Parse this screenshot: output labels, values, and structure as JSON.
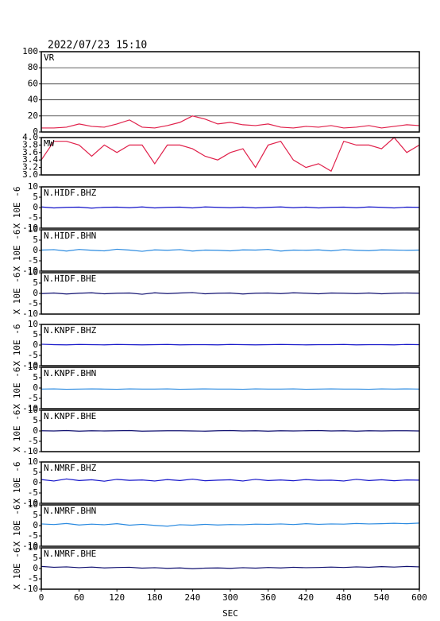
{
  "chart_data": [
    {
      "type": "line",
      "title": "2022/07/23 15:10",
      "xlim": [
        0,
        600
      ],
      "ylim": [
        0,
        100
      ],
      "yticks": [
        0,
        20,
        40,
        60,
        80,
        100
      ],
      "grid": true,
      "x": [
        0,
        20,
        40,
        60,
        80,
        100,
        120,
        140,
        160,
        180,
        200,
        220,
        240,
        260,
        280,
        300,
        320,
        340,
        360,
        380,
        400,
        420,
        440,
        460,
        480,
        500,
        520,
        540,
        560,
        580,
        600
      ],
      "series": [
        {
          "name": "VR",
          "color": "#e0204a",
          "values": [
            5,
            5,
            6,
            10,
            7,
            6,
            10,
            15,
            6,
            5,
            8,
            12,
            20,
            16,
            10,
            12,
            9,
            8,
            10,
            6,
            5,
            7,
            6,
            8,
            5,
            6,
            8,
            5,
            7,
            9,
            8
          ]
        }
      ]
    },
    {
      "type": "line",
      "xlim": [
        0,
        600
      ],
      "ylim": [
        3,
        4
      ],
      "yticks": [
        {
          "value": 3.0,
          "label": "3.0"
        },
        3.2,
        3.4,
        3.6,
        3.8,
        {
          "value": 4.0,
          "label": "4.0"
        }
      ],
      "x": [
        0,
        20,
        40,
        60,
        80,
        100,
        120,
        140,
        160,
        180,
        200,
        220,
        240,
        260,
        280,
        300,
        320,
        340,
        360,
        380,
        400,
        420,
        440,
        460,
        480,
        500,
        520,
        540,
        560,
        580,
        600
      ],
      "series": [
        {
          "name": "MW",
          "color": "#e0204a",
          "values": [
            3.4,
            3.9,
            3.9,
            3.8,
            3.5,
            3.8,
            3.6,
            3.8,
            3.8,
            3.3,
            3.8,
            3.8,
            3.7,
            3.5,
            3.4,
            3.6,
            3.7,
            3.2,
            3.8,
            3.9,
            3.4,
            3.2,
            3.3,
            3.1,
            3.9,
            3.8,
            3.8,
            3.7,
            4.0,
            3.6,
            3.8
          ]
        }
      ]
    },
    {
      "type": "line",
      "ylabel": "X 10E -6",
      "xlim": [
        0,
        600
      ],
      "ylim": [
        -10,
        10
      ],
      "yticks": [
        -10,
        -5,
        0,
        5,
        10
      ],
      "x": [
        0,
        20,
        40,
        60,
        80,
        100,
        120,
        140,
        160,
        180,
        200,
        220,
        240,
        260,
        280,
        300,
        320,
        340,
        360,
        380,
        400,
        420,
        440,
        460,
        480,
        500,
        520,
        540,
        560,
        580,
        600
      ],
      "series": [
        {
          "name": "N.HIDF.BHZ",
          "color": "#1010c8",
          "values": [
            0.3,
            -0.2,
            0.1,
            0.2,
            -0.3,
            0.1,
            0.2,
            -0.1,
            0.3,
            -0.2,
            0.1,
            0.2,
            -0.2,
            0.3,
            0.1,
            -0.1,
            0.2,
            -0.2,
            0.1,
            0.3,
            -0.1,
            0.2,
            -0.2,
            0.1,
            0.2,
            -0.1,
            0.3,
            0.1,
            -0.2,
            0.2,
            0.1
          ]
        }
      ]
    },
    {
      "type": "line",
      "ylabel": "X 10E -6",
      "xlim": [
        0,
        600
      ],
      "ylim": [
        -10,
        10
      ],
      "yticks": [
        -10,
        -5,
        0,
        5,
        10
      ],
      "x": [
        0,
        20,
        40,
        60,
        80,
        100,
        120,
        140,
        160,
        180,
        200,
        220,
        240,
        260,
        280,
        300,
        320,
        340,
        360,
        380,
        400,
        420,
        440,
        460,
        480,
        500,
        520,
        540,
        560,
        580,
        600
      ],
      "series": [
        {
          "name": "N.HIDF.BHN",
          "color": "#2a8ae0",
          "values": [
            0.2,
            0.4,
            -0.3,
            0.5,
            0.1,
            -0.2,
            0.6,
            0.2,
            -0.4,
            0.3,
            0.1,
            0.4,
            -0.3,
            0.2,
            0.1,
            -0.2,
            0.3,
            0.2,
            0.5,
            -0.3,
            0.2,
            0.1,
            0.3,
            -0.2,
            0.4,
            0.1,
            -0.1,
            0.3,
            0.2,
            0.1,
            0.2
          ]
        }
      ]
    },
    {
      "type": "line",
      "ylabel": "X 10E -6",
      "xlim": [
        0,
        600
      ],
      "ylim": [
        -10,
        10
      ],
      "yticks": [
        -10,
        -5,
        0,
        5,
        10
      ],
      "x": [
        0,
        20,
        40,
        60,
        80,
        100,
        120,
        140,
        160,
        180,
        200,
        220,
        240,
        260,
        280,
        300,
        320,
        340,
        360,
        380,
        400,
        420,
        440,
        460,
        480,
        500,
        520,
        540,
        560,
        580,
        600
      ],
      "series": [
        {
          "name": "N.HIDF.BHE",
          "color": "#101070",
          "values": [
            -0.1,
            0.2,
            -0.3,
            0.1,
            0.3,
            -0.2,
            0.1,
            0.2,
            -0.4,
            0.3,
            -0.1,
            0.2,
            0.4,
            -0.2,
            0.1,
            0.2,
            -0.3,
            0.1,
            0.2,
            -0.1,
            0.3,
            0.1,
            -0.2,
            0.2,
            0.1,
            -0.1,
            0.2,
            -0.2,
            0.1,
            0.2,
            0.1
          ]
        }
      ]
    },
    {
      "type": "line",
      "ylabel": "X 10E -6",
      "xlim": [
        0,
        600
      ],
      "ylim": [
        -10,
        10
      ],
      "yticks": [
        -10,
        -5,
        0,
        5,
        10
      ],
      "x": [
        0,
        20,
        40,
        60,
        80,
        100,
        120,
        140,
        160,
        180,
        200,
        220,
        240,
        260,
        280,
        300,
        320,
        340,
        360,
        380,
        400,
        420,
        440,
        460,
        480,
        500,
        520,
        540,
        560,
        580,
        600
      ],
      "series": [
        {
          "name": "N.KNPF.BHZ",
          "color": "#1010c8",
          "values": [
            0.4,
            0.2,
            0.1,
            0.3,
            0.2,
            0.1,
            0.3,
            0.2,
            0.1,
            0.2,
            0.3,
            0.1,
            0.2,
            0.2,
            0.1,
            0.3,
            0.2,
            0.1,
            0.2,
            0.3,
            0.2,
            0.1,
            0.2,
            0.2,
            0.3,
            0.1,
            0.2,
            0.2,
            0.1,
            0.3,
            0.2
          ]
        }
      ]
    },
    {
      "type": "line",
      "ylabel": "X 10E -6",
      "xlim": [
        0,
        600
      ],
      "ylim": [
        -10,
        10
      ],
      "yticks": [
        -10,
        -5,
        0,
        5,
        10
      ],
      "x": [
        0,
        20,
        40,
        60,
        80,
        100,
        120,
        140,
        160,
        180,
        200,
        220,
        240,
        260,
        280,
        300,
        320,
        340,
        360,
        380,
        400,
        420,
        440,
        460,
        480,
        500,
        520,
        540,
        560,
        580,
        600
      ],
      "series": [
        {
          "name": "N.KNPF.BHN",
          "color": "#2a8ae0",
          "values": [
            -0.5,
            -0.4,
            -0.6,
            -0.5,
            -0.4,
            -0.5,
            -0.6,
            -0.4,
            -0.5,
            -0.5,
            -0.4,
            -0.6,
            -0.5,
            -0.4,
            -0.5,
            -0.5,
            -0.6,
            -0.4,
            -0.5,
            -0.5,
            -0.4,
            -0.6,
            -0.5,
            -0.4,
            -0.5,
            -0.5,
            -0.6,
            -0.4,
            -0.5,
            -0.4,
            -0.5
          ]
        }
      ]
    },
    {
      "type": "line",
      "ylabel": "X 10E -6",
      "xlim": [
        0,
        600
      ],
      "ylim": [
        -10,
        10
      ],
      "yticks": [
        -10,
        -5,
        0,
        5,
        10
      ],
      "x": [
        0,
        20,
        40,
        60,
        80,
        100,
        120,
        140,
        160,
        180,
        200,
        220,
        240,
        260,
        280,
        300,
        320,
        340,
        360,
        380,
        400,
        420,
        440,
        460,
        480,
        500,
        520,
        540,
        560,
        580,
        600
      ],
      "series": [
        {
          "name": "N.KNPF.BHE",
          "color": "#101070",
          "values": [
            0.1,
            0.0,
            0.2,
            -0.1,
            0.1,
            0.0,
            0.1,
            0.2,
            -0.1,
            0.0,
            0.1,
            0.1,
            0.0,
            -0.1,
            0.1,
            0.2,
            0.0,
            0.1,
            -0.1,
            0.1,
            0.0,
            0.1,
            0.2,
            0.0,
            0.1,
            -0.1,
            0.1,
            0.0,
            0.1,
            0.1,
            0.0
          ]
        }
      ]
    },
    {
      "type": "line",
      "ylabel": "X 10E -6",
      "xlim": [
        0,
        600
      ],
      "ylim": [
        -10,
        10
      ],
      "yticks": [
        -10,
        -5,
        0,
        5,
        10
      ],
      "x": [
        0,
        20,
        40,
        60,
        80,
        100,
        120,
        140,
        160,
        180,
        200,
        220,
        240,
        260,
        280,
        300,
        320,
        340,
        360,
        380,
        400,
        420,
        440,
        460,
        480,
        500,
        520,
        540,
        560,
        580,
        600
      ],
      "series": [
        {
          "name": "N.NMRF.BHZ",
          "color": "#1010c8",
          "values": [
            1.5,
            0.8,
            1.8,
            1.0,
            1.4,
            0.7,
            1.6,
            1.1,
            1.3,
            0.8,
            1.5,
            1.0,
            1.7,
            0.9,
            1.2,
            1.4,
            0.8,
            1.6,
            1.0,
            1.3,
            0.9,
            1.5,
            1.1,
            1.2,
            0.8,
            1.6,
            1.0,
            1.4,
            0.9,
            1.3,
            1.2
          ]
        }
      ]
    },
    {
      "type": "line",
      "ylabel": "X 10E -6",
      "xlim": [
        0,
        600
      ],
      "ylim": [
        -10,
        10
      ],
      "yticks": [
        -10,
        -5,
        0,
        5,
        10
      ],
      "x": [
        0,
        20,
        40,
        60,
        80,
        100,
        120,
        140,
        160,
        180,
        200,
        220,
        240,
        260,
        280,
        300,
        320,
        340,
        360,
        380,
        400,
        420,
        440,
        460,
        480,
        500,
        520,
        540,
        560,
        580,
        600
      ],
      "series": [
        {
          "name": "N.NMRF.BHN",
          "color": "#2a8ae0",
          "values": [
            0.8,
            0.5,
            1.0,
            0.3,
            0.7,
            0.4,
            0.9,
            0.2,
            0.6,
            0.1,
            -0.3,
            0.4,
            0.2,
            0.6,
            0.3,
            0.5,
            0.4,
            0.7,
            0.6,
            0.8,
            0.5,
            0.9,
            0.6,
            0.8,
            0.7,
            1.0,
            0.8,
            0.9,
            1.1,
            0.9,
            1.2
          ]
        }
      ]
    },
    {
      "type": "line",
      "ylabel": "X 10E -6",
      "xlabel": "SEC",
      "xlim": [
        0,
        600
      ],
      "xticks": [
        0,
        60,
        120,
        180,
        240,
        300,
        360,
        420,
        480,
        540,
        600
      ],
      "ylim": [
        -10,
        10
      ],
      "yticks": [
        -10,
        -5,
        0,
        5,
        10
      ],
      "x": [
        0,
        20,
        40,
        60,
        80,
        100,
        120,
        140,
        160,
        180,
        200,
        220,
        240,
        260,
        280,
        300,
        320,
        340,
        360,
        380,
        400,
        420,
        440,
        460,
        480,
        500,
        520,
        540,
        560,
        580,
        600
      ],
      "series": [
        {
          "name": "N.NMRF.BHE",
          "color": "#101070",
          "values": [
            1.0,
            0.6,
            0.8,
            0.4,
            0.7,
            0.3,
            0.5,
            0.6,
            0.2,
            0.4,
            0.1,
            0.3,
            -0.1,
            0.2,
            0.3,
            0.1,
            0.4,
            0.2,
            0.5,
            0.3,
            0.6,
            0.4,
            0.5,
            0.7,
            0.5,
            0.8,
            0.6,
            0.9,
            0.7,
            1.0,
            0.8
          ]
        }
      ]
    }
  ]
}
